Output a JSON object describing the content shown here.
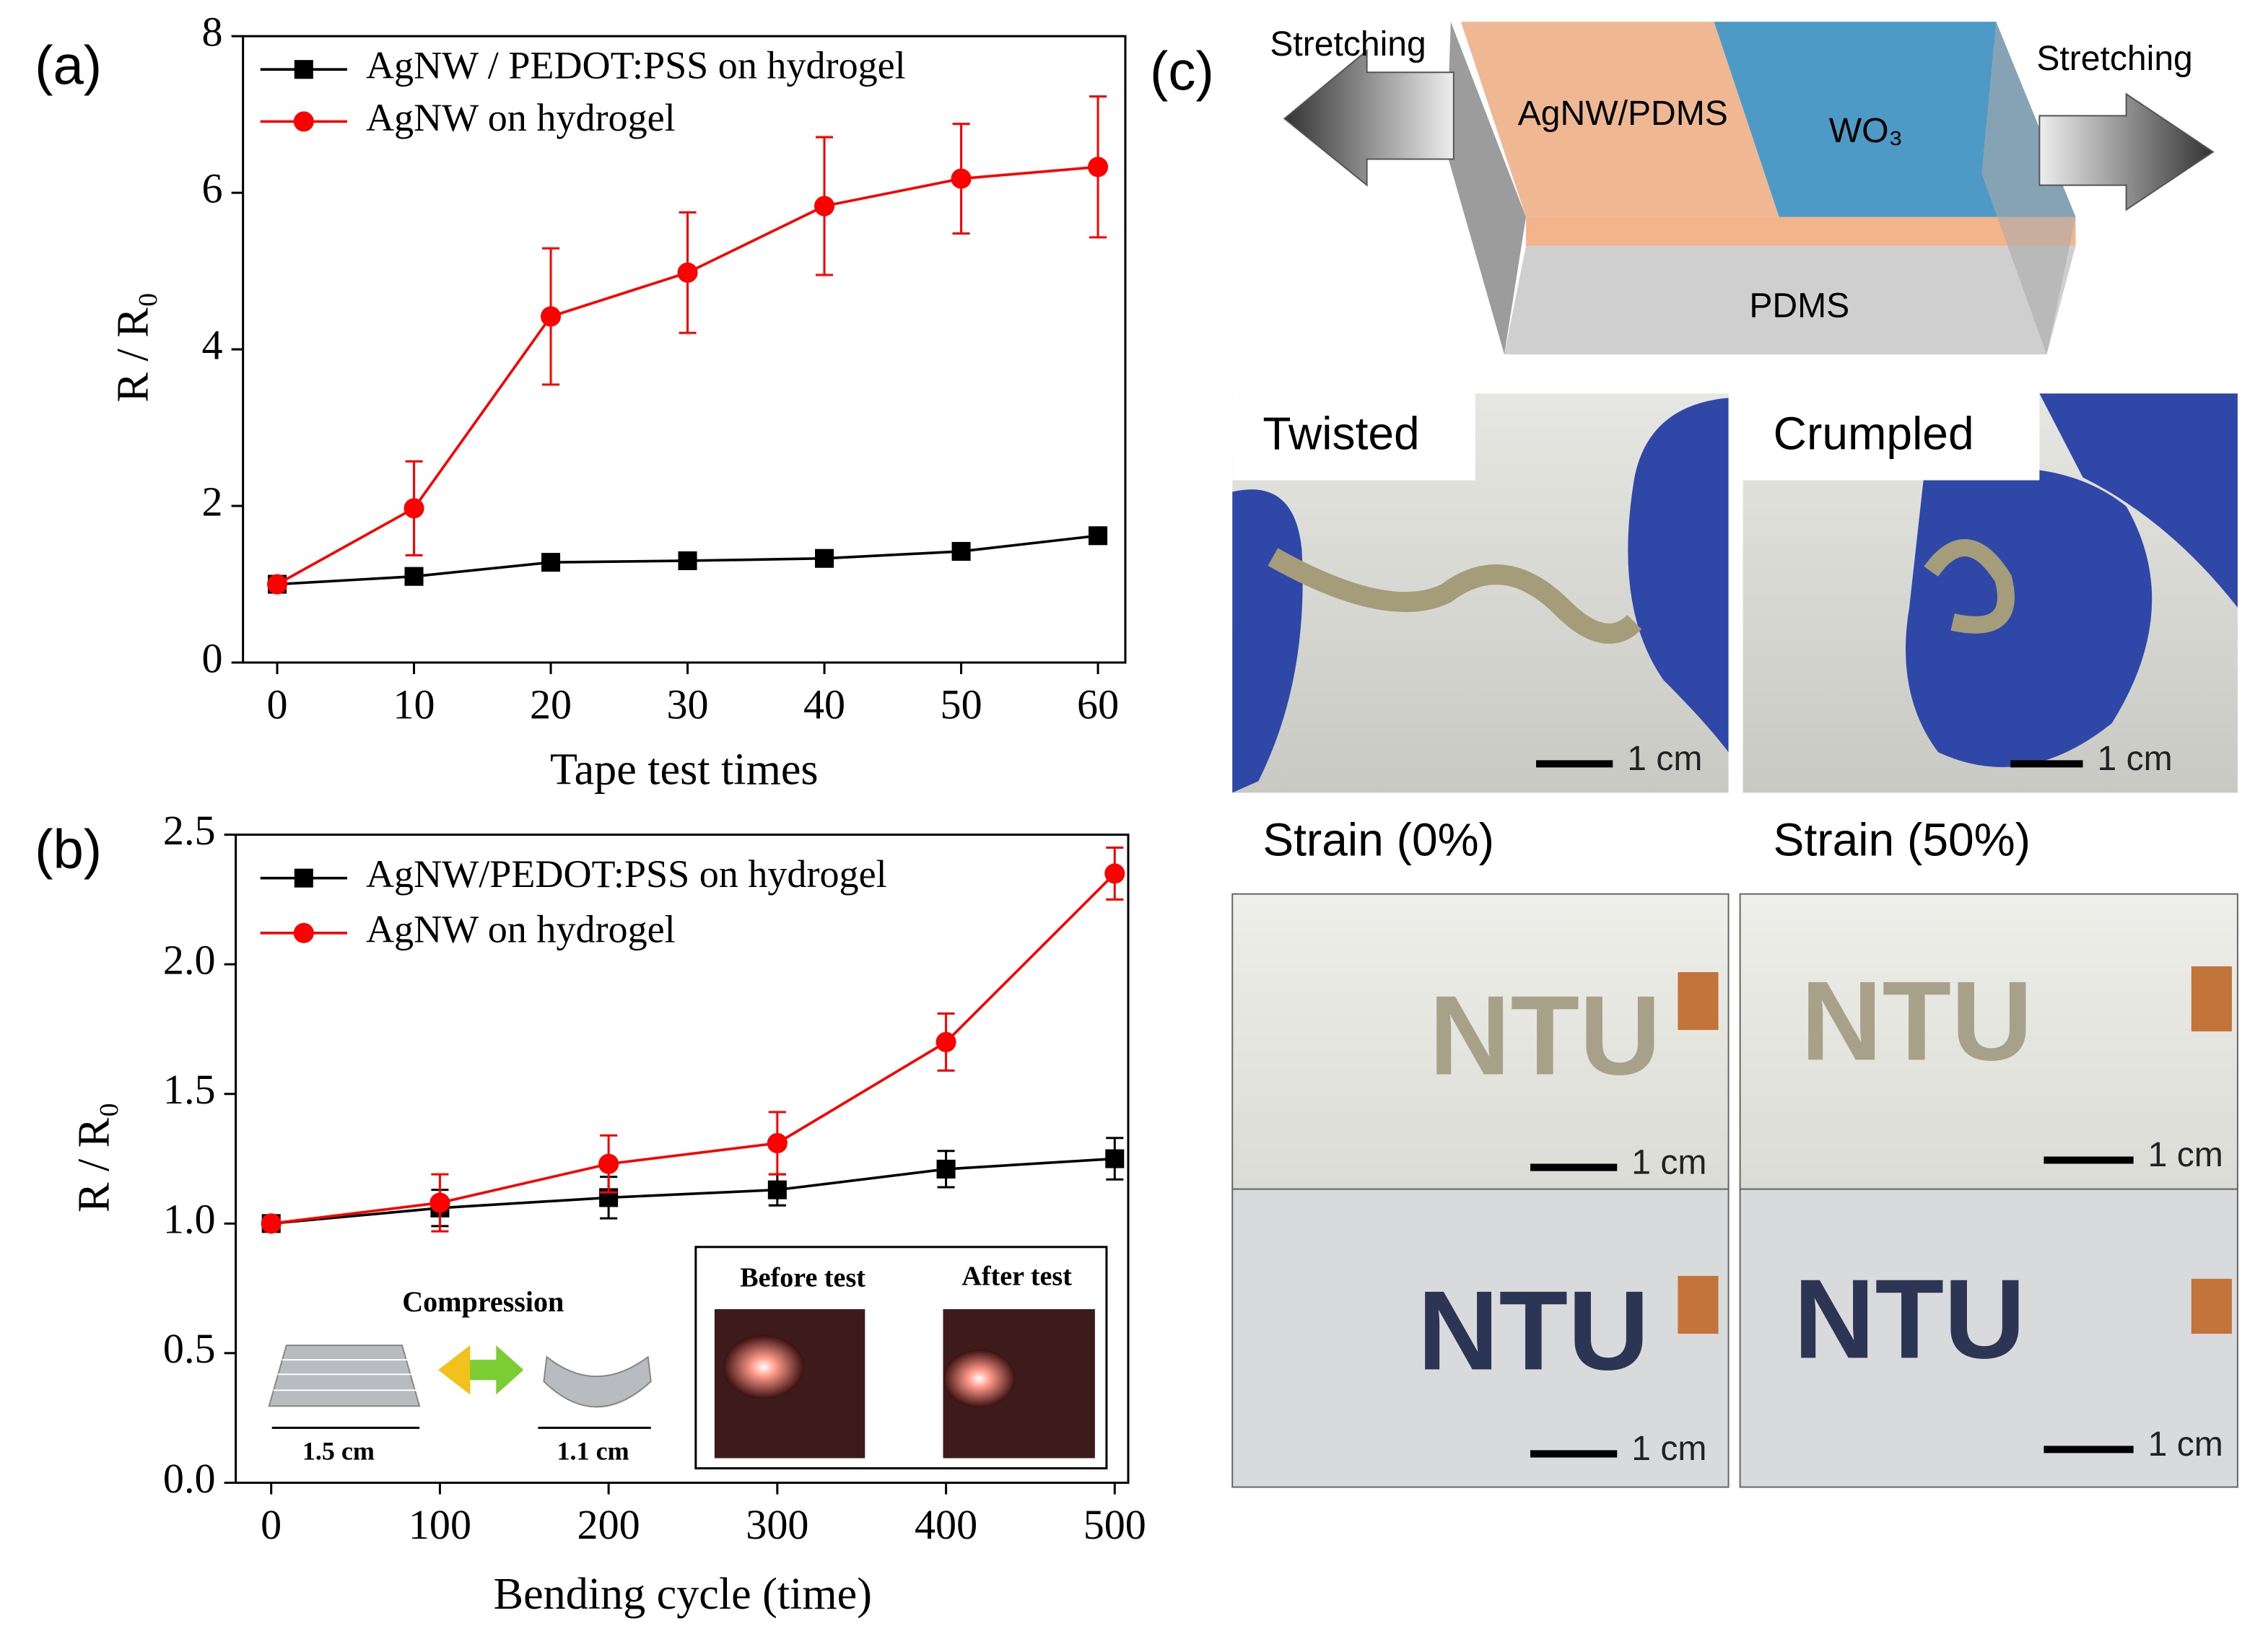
{
  "chart_data": [
    {
      "type": "line",
      "x_label": "Tape test times",
      "y_label": "R / R₀",
      "x": [
        0,
        10,
        20,
        30,
        40,
        50,
        60
      ],
      "xlim": [
        -2.5,
        62
      ],
      "xticks": [
        0,
        10,
        20,
        30,
        40,
        50,
        60
      ],
      "ylim": [
        0,
        8
      ],
      "yticks": [
        0,
        2,
        4,
        6,
        8
      ],
      "legend": "upper left",
      "series": [
        {
          "name": "AgNW / PEDOT:PSS on hydrogel",
          "color": "#000000",
          "marker": "square",
          "values": [
            1.0,
            1.1,
            1.28,
            1.3,
            1.33,
            1.42,
            1.62
          ]
        },
        {
          "name": "AgNW on hydrogel",
          "color": "#ff0000",
          "marker": "circle",
          "values": [
            1.0,
            1.97,
            4.42,
            4.98,
            5.83,
            6.18,
            6.33
          ],
          "errors": [
            0,
            0.6,
            0.87,
            0.77,
            0.88,
            0.7,
            0.9
          ]
        }
      ]
    },
    {
      "type": "line",
      "x_label": "Bending cycle (time)",
      "y_label": "R / R₀",
      "x": [
        0,
        100,
        200,
        300,
        400,
        500
      ],
      "xlim": [
        -21,
        508
      ],
      "xticks": [
        0,
        100,
        200,
        300,
        400,
        500
      ],
      "ylim": [
        0,
        2.5
      ],
      "yticks": [
        {
          "value": 0,
          "label": "0.0"
        },
        0.5,
        {
          "value": 1,
          "label": "1.0"
        },
        1.5,
        {
          "value": 2,
          "label": "2.0"
        },
        2.5
      ],
      "legend": "upper left",
      "series": [
        {
          "name": "AgNW/PEDOT:PSS on hydrogel",
          "color": "#000000",
          "marker": "square",
          "values": [
            1.0,
            1.06,
            1.1,
            1.13,
            1.21,
            1.25
          ],
          "errors": [
            0,
            0.07,
            0.08,
            0.06,
            0.07,
            0.08
          ]
        },
        {
          "name": "AgNW on hydrogel",
          "color": "#ff0000",
          "marker": "circle",
          "values": [
            1.0,
            1.08,
            1.23,
            1.31,
            1.7,
            2.35
          ],
          "errors": [
            0,
            0.11,
            0.11,
            0.12,
            0.11,
            0.1
          ]
        }
      ]
    }
  ],
  "figure": {
    "panel_labels": [
      "(a)",
      "(b)",
      "(c)"
    ],
    "inset_b": {
      "compression": "Compression",
      "width_flat": "1.5 cm",
      "width_bent": "1.1 cm",
      "before": "Before test",
      "after": "After test"
    },
    "panel_c": {
      "stretch_left": "Stretching",
      "stretch_right": "Stretching",
      "layer_agnw": "AgNW/PDMS",
      "layer_wo3": "WO₃",
      "layer_pdms": "PDMS",
      "twisted": "Twisted",
      "crumpled": "Crumpled",
      "strain_0": "Strain (0%)",
      "strain_50": "Strain (50%)",
      "scale_bars": [
        "1 cm",
        "1 cm",
        "1 cm",
        "1 cm",
        "1 cm",
        "1 cm"
      ],
      "logo": "NTU"
    }
  }
}
